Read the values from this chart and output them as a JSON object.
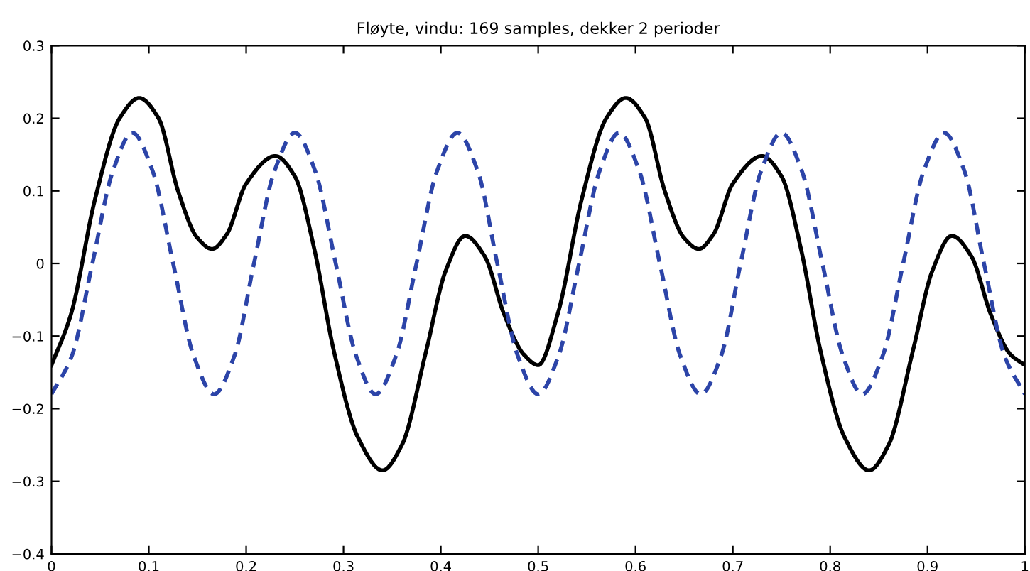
{
  "chart_data": {
    "type": "line",
    "title": "Fløyte, vindu: 169 samples, dekker 2 perioder",
    "xlim": [
      0,
      1
    ],
    "xticks": [
      0,
      0.1,
      0.2,
      0.3,
      0.4,
      0.5,
      0.6,
      0.7,
      0.8,
      0.9,
      1
    ],
    "ylim": [
      -0.4,
      0.3
    ],
    "yticks": [
      {
        "value": -0.4,
        "label": "−0.4"
      },
      {
        "value": -0.3,
        "label": "−0.3"
      },
      {
        "value": -0.2,
        "label": "−0.2"
      },
      {
        "value": -0.1,
        "label": "−0.1"
      },
      0,
      0.1,
      0.2,
      0.3
    ],
    "grid": false,
    "legend": false,
    "marker": "none",
    "series": [
      {
        "color": "#000000",
        "line_style": "solid",
        "x": [
          0,
          0.02,
          0.045,
          0.07,
          0.09,
          0.11,
          0.13,
          0.15,
          0.165,
          0.18,
          0.2,
          0.23,
          0.25,
          0.27,
          0.29,
          0.315,
          0.34,
          0.36,
          0.385,
          0.405,
          0.425,
          0.445,
          0.465,
          0.485,
          0.5,
          0.52,
          0.545,
          0.57,
          0.59,
          0.61,
          0.63,
          0.65,
          0.665,
          0.68,
          0.7,
          0.73,
          0.75,
          0.77,
          0.79,
          0.815,
          0.84,
          0.86,
          0.885,
          0.905,
          0.925,
          0.945,
          0.965,
          0.985,
          1.0
        ],
        "values": [
          -0.14,
          -0.07,
          0.09,
          0.2,
          0.228,
          0.2,
          0.1,
          0.035,
          0.02,
          0.04,
          0.11,
          0.148,
          0.12,
          0.02,
          -0.12,
          -0.24,
          -0.285,
          -0.25,
          -0.12,
          -0.01,
          0.038,
          0.01,
          -0.07,
          -0.125,
          -0.14,
          -0.07,
          0.09,
          0.2,
          0.228,
          0.2,
          0.1,
          0.035,
          0.02,
          0.04,
          0.11,
          0.148,
          0.12,
          0.02,
          -0.12,
          -0.24,
          -0.285,
          -0.25,
          -0.12,
          -0.01,
          0.038,
          0.01,
          -0.07,
          -0.125,
          -0.14
        ]
      },
      {
        "color": "#2c44a8",
        "line_style": "dashed",
        "x": [
          0,
          0.021,
          0.042,
          0.063,
          0.083,
          0.104,
          0.125,
          0.146,
          0.167,
          0.188,
          0.208,
          0.229,
          0.25,
          0.271,
          0.292,
          0.313,
          0.333,
          0.354,
          0.375,
          0.396,
          0.417,
          0.438,
          0.458,
          0.479,
          0.5,
          0.521,
          0.542,
          0.563,
          0.583,
          0.604,
          0.625,
          0.646,
          0.667,
          0.688,
          0.708,
          0.729,
          0.75,
          0.771,
          0.792,
          0.813,
          0.833,
          0.854,
          0.875,
          0.896,
          0.917,
          0.938,
          0.958,
          0.979,
          1.0
        ],
        "values": [
          -0.18,
          -0.127,
          0,
          0.127,
          0.18,
          0.127,
          0,
          -0.127,
          -0.18,
          -0.127,
          0,
          0.127,
          0.18,
          0.127,
          0,
          -0.127,
          -0.18,
          -0.127,
          0,
          0.127,
          0.18,
          0.127,
          0,
          -0.127,
          -0.18,
          -0.127,
          0,
          0.127,
          0.18,
          0.127,
          0,
          -0.127,
          -0.18,
          -0.127,
          0,
          0.127,
          0.18,
          0.127,
          0,
          -0.127,
          -0.18,
          -0.127,
          0,
          0.127,
          0.18,
          0.127,
          0,
          -0.127,
          -0.18
        ]
      }
    ]
  }
}
